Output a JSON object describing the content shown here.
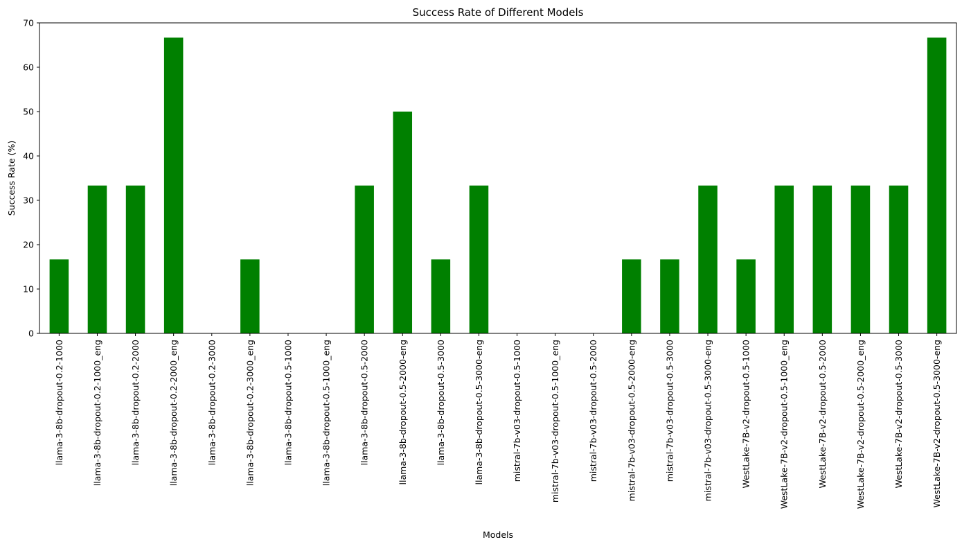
{
  "chart_data": {
    "type": "bar",
    "title": "Success Rate of Different Models",
    "xlabel": "Models",
    "ylabel": "Success Rate (%)",
    "ylim": [
      0,
      70
    ],
    "yticks": [
      0,
      10,
      20,
      30,
      40,
      50,
      60,
      70
    ],
    "grid": false,
    "bar_color": "#008000",
    "categories": [
      "llama-3-8b-dropout-0.2-1000",
      "llama-3-8b-dropout-0.2-1000_eng",
      "llama-3-8b-dropout-0.2-2000",
      "llama-3-8b-dropout-0.2-2000_eng",
      "llama-3-8b-dropout-0.2-3000",
      "llama-3-8b-dropout-0.2-3000_eng",
      "llama-3-8b-dropout-0.5-1000",
      "llama-3-8b-dropout-0.5-1000_eng",
      "llama-3-8b-dropout-0.5-2000",
      "llama-3-8b-dropout-0.5-2000-eng",
      "llama-3-8b-dropout-0.5-3000",
      "llama-3-8b-dropout-0.5-3000-eng",
      "mistral-7b-v03-dropout-0.5-1000",
      "mistral-7b-v03-dropout-0.5-1000_eng",
      "mistral-7b-v03-dropout-0.5-2000",
      "mistral-7b-v03-dropout-0.5-2000-eng",
      "mistral-7b-v03-dropout-0.5-3000",
      "mistral-7b-v03-dropout-0.5-3000-eng",
      "WestLake-7B-v2-dropout-0.5-1000",
      "WestLake-7B-v2-dropout-0.5-1000_eng",
      "WestLake-7B-v2-dropout-0.5-2000",
      "WestLake-7B-v2-dropout-0.5-2000_eng",
      "WestLake-7B-v2-dropout-0.5-3000",
      "WestLake-7B-v2-dropout-0.5-3000-eng"
    ],
    "values": [
      16.67,
      33.33,
      33.33,
      66.67,
      0,
      16.67,
      0,
      0,
      33.33,
      50,
      16.67,
      33.33,
      0,
      0,
      0,
      16.67,
      16.67,
      33.33,
      16.67,
      33.33,
      33.33,
      33.33,
      33.33,
      66.67
    ]
  }
}
